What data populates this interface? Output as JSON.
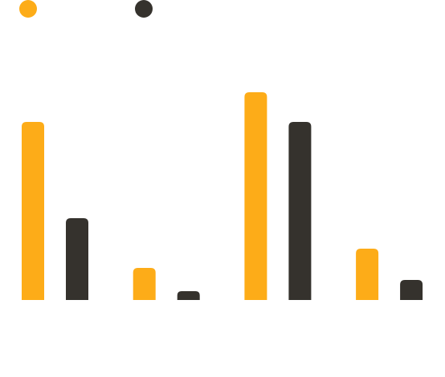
{
  "chart_data": {
    "type": "bar",
    "categories": [
      null,
      null,
      null,
      null
    ],
    "series": [
      {
        "color": "#fdac18",
        "values": [
          222,
          40,
          259,
          64
        ]
      },
      {
        "color": "#35322d",
        "values": [
          102,
          11,
          222,
          25
        ]
      }
    ],
    "ylim": [
      0,
      300
    ]
  }
}
